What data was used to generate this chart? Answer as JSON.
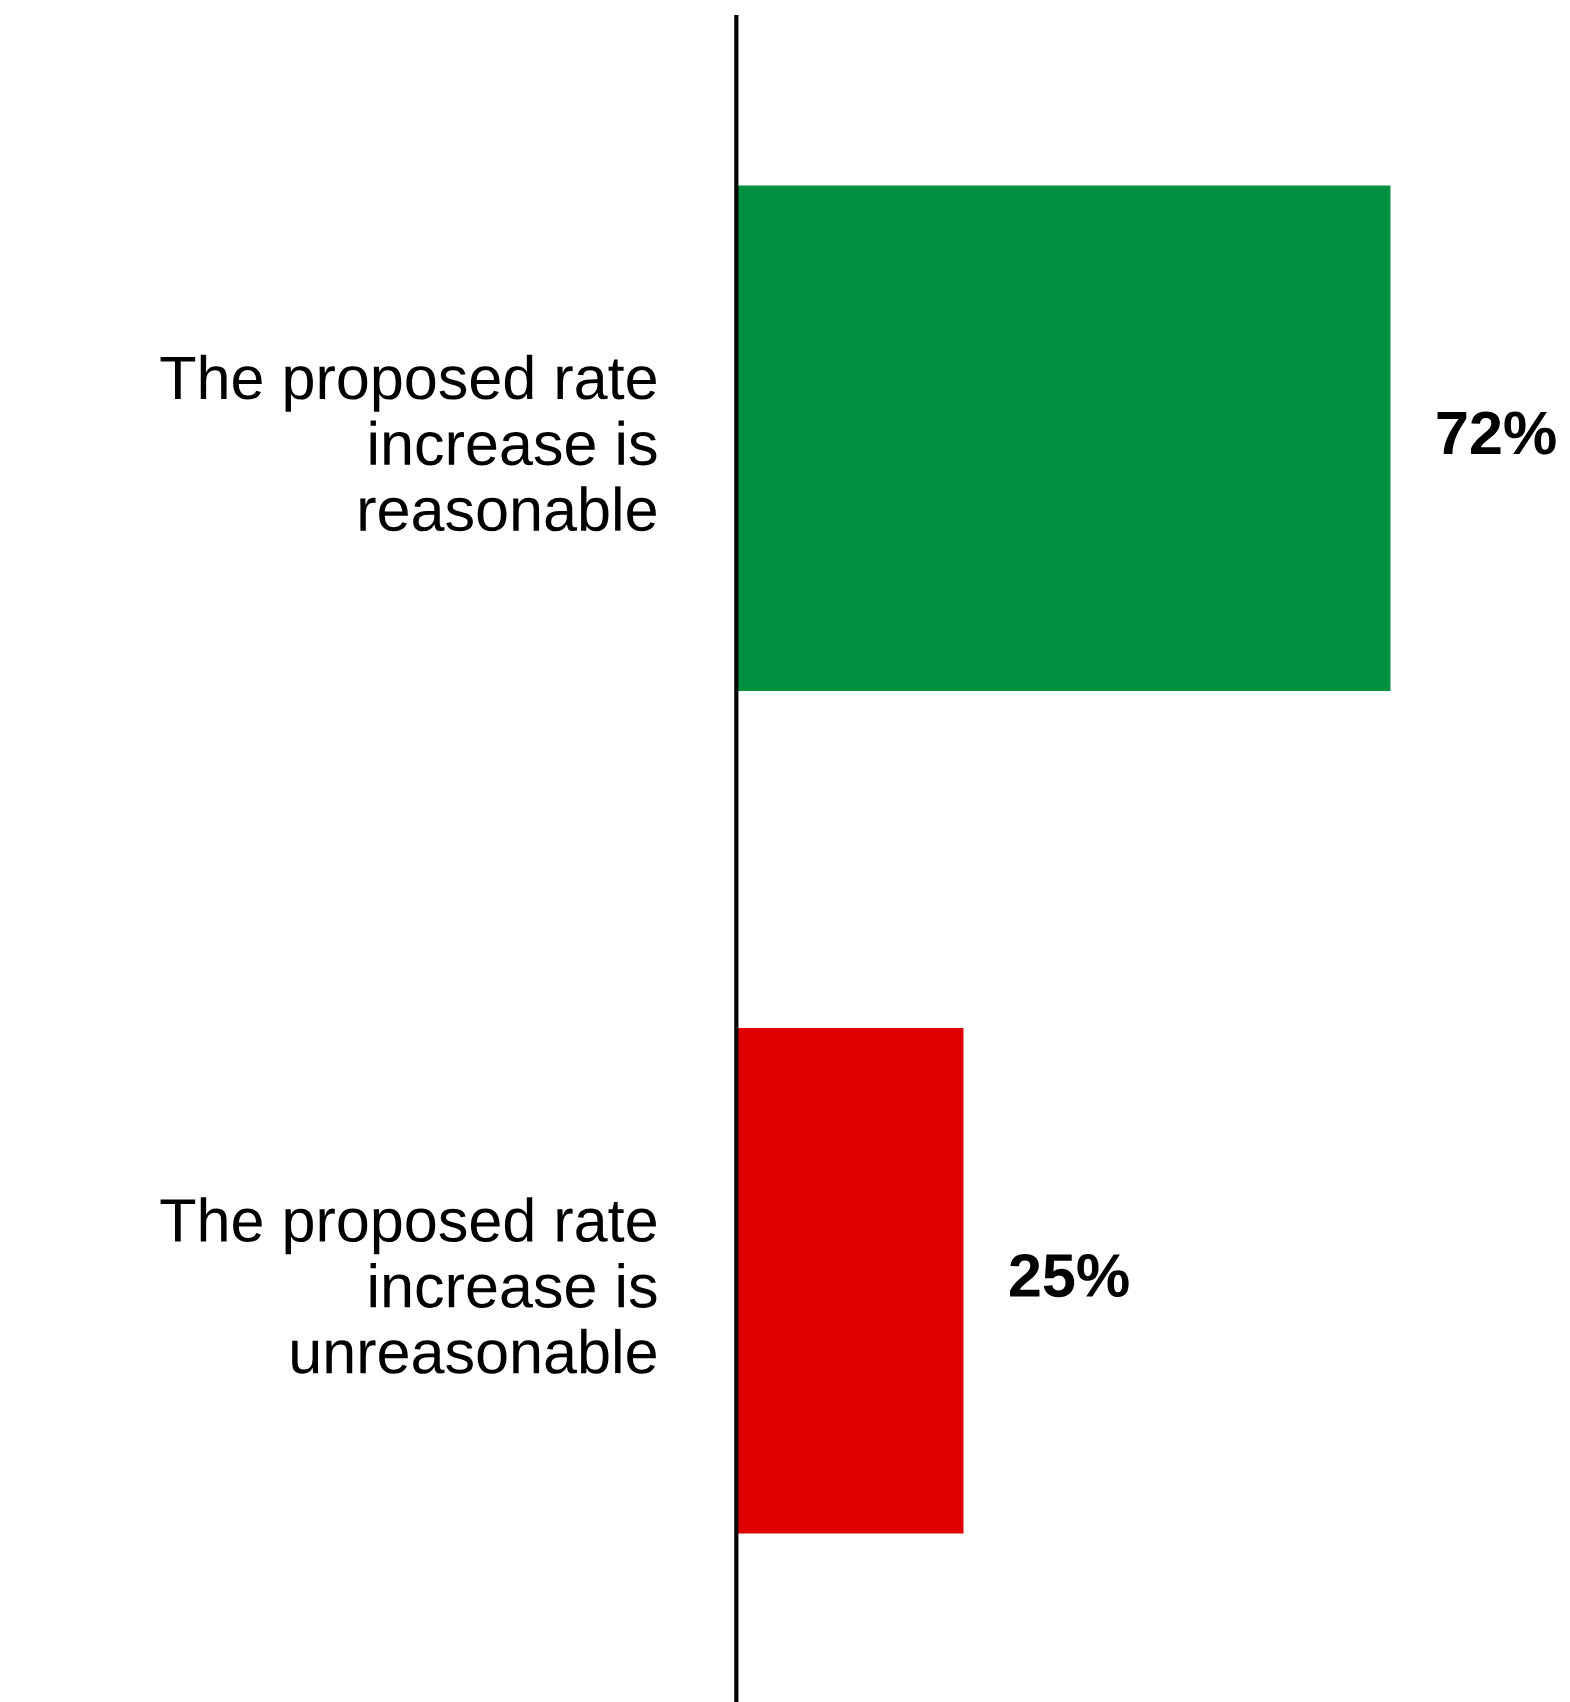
{
  "chart_data": {
    "type": "bar",
    "orientation": "horizontal",
    "categories": [
      "The proposed rate\nincrease is\nreasonable",
      "The proposed rate\nincrease is\nunreasonable"
    ],
    "values": [
      72,
      25
    ],
    "colors": [
      "#009040",
      "#e00000"
    ],
    "value_labels": [
      "72%",
      "25%"
    ],
    "grid": false,
    "legend": false
  }
}
